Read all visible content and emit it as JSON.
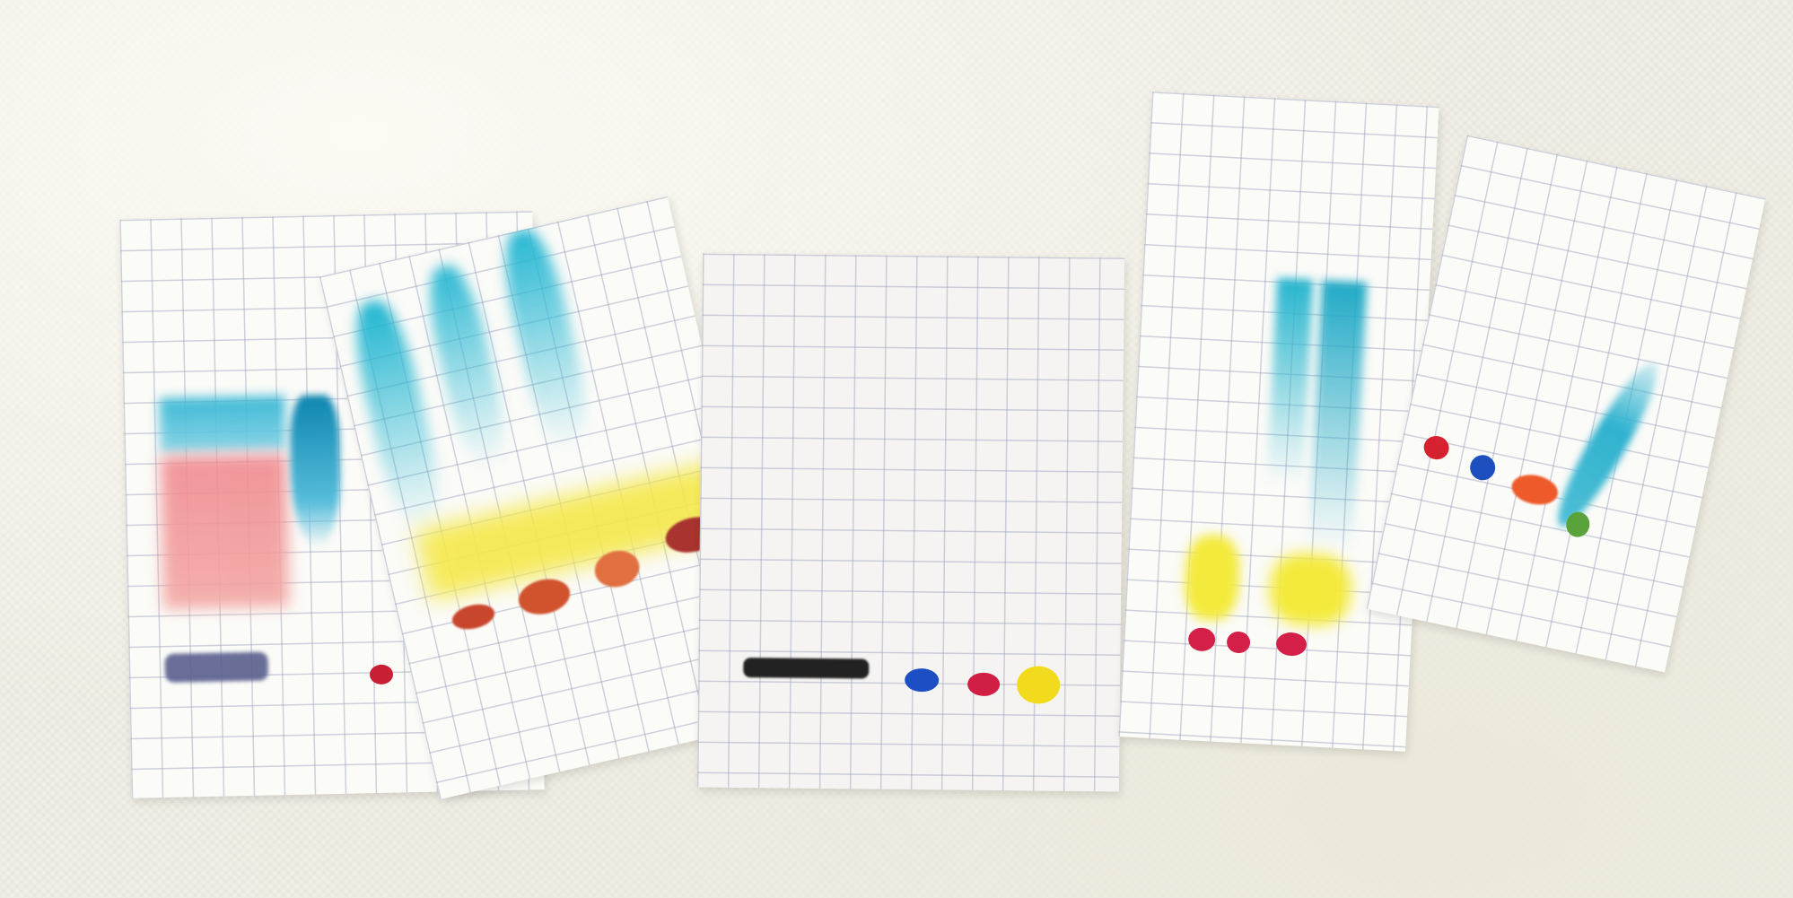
{
  "scene": {
    "description_type": "photo",
    "subject": "paper-chromatography-strips",
    "strip_count": 5,
    "colors": {
      "background": "#f1efe5",
      "paper": "#fbfbf8",
      "grid": "#969bb9",
      "cyan": "#1fb5d1",
      "blue": "#1a6fb5",
      "red": "#d6203a",
      "pink": "#ef7a82",
      "yellow": "#f3e43a",
      "orange": "#d95a2a",
      "black": "#222222",
      "green": "#5aa33a"
    }
  }
}
